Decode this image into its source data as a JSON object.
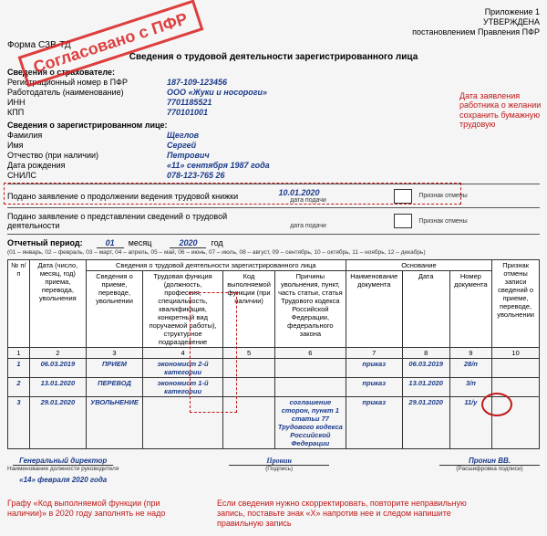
{
  "header": {
    "app_line1": "Приложение 1",
    "app_line2": "УТВЕРЖДЕНА",
    "app_line3": "постановлением Правления ПФР",
    "form_name": "Форма СЗВ-ТД",
    "title": "Сведения о трудовой деятельности зарегистрированного лица"
  },
  "insurer": {
    "head": "Сведения о страхователе:",
    "reg_label": "Регистрационный номер в ПФР",
    "reg_value": "187-109-123456",
    "emp_label": "Работодатель (наименование)",
    "emp_value": "ООО «Жуки и носороги»",
    "inn_label": "ИНН",
    "inn_value": "7701185521",
    "kpp_label": "КПП",
    "kpp_value": "770101001"
  },
  "person": {
    "head": "Сведения о зарегистрированном лице:",
    "fam_label": "Фамилия",
    "fam_value": "Щеглов",
    "name_label": "Имя",
    "name_value": "Сергей",
    "otch_label": "Отчество (при наличии)",
    "otch_value": "Петрович",
    "dob_label": "Дата рождения",
    "dob_value": "«11»  сентября 1987 года",
    "snils_label": "СНИЛС",
    "snils_value": "078-123-765 26"
  },
  "statements": {
    "s1_text": "Подано заявление о продолжении ведения трудовой книжки",
    "s1_date": "10.01.2020",
    "s2_text": "Подано заявление о представлении сведений о трудовой деятельности",
    "date_caption": "дата подачи",
    "cancel_caption": "Признак отмены"
  },
  "period": {
    "label": "Отчетный период:",
    "month": "01",
    "month_word": "месяц",
    "year": "2020",
    "year_word": "год",
    "note": "(01 – январь, 02 – февраль, 03 – март, 04 – апрель, 05 – май, 06 – июнь, 07 – июль, 08 – август, 09 – сентябрь, 10 – октябрь, 11 – ноябрь, 12 – декабрь)"
  },
  "table": {
    "h_np": "№ п/п",
    "h_date": "Дата (число, месяц, год) приема, перевода, увольнения",
    "h_svedeniya": "Сведения о трудовой деятельности зарегистрированного лица",
    "h_priema": "Сведения о приеме, переводе, увольнении",
    "h_func": "Трудовая функция (должность, профессия, специальность, квалификация, конкретный вид поручаемой работы), структурное подразделение",
    "h_code": "Код выполняемой функции (при наличии)",
    "h_reason": "Причины увольнения, пункт, часть статьи, статья Трудового кодекса Российской Федерации, федерального закона",
    "h_osn": "Основание",
    "h_doc_name": "Наименование документа",
    "h_doc_date": "Дата",
    "h_doc_num": "Номер документа",
    "h_cancel": "Признак отмены записи сведений о приеме, переводе, увольнении",
    "nums": {
      "c1": "1",
      "c2": "2",
      "c3": "3",
      "c4": "4",
      "c5": "5",
      "c6": "6",
      "c7": "7",
      "c8": "8",
      "c9": "9",
      "c10": "10"
    },
    "rows": [
      {
        "n": "1",
        "date": "06.03.2019",
        "event": "ПРИЕМ",
        "func": "экономист 2-й категории",
        "code": "",
        "reason": "",
        "doc": "приказ",
        "ddate": "06.03.2019",
        "dnum": "28/п",
        "cancel": ""
      },
      {
        "n": "2",
        "date": "13.01.2020",
        "event": "ПЕРЕВОД",
        "func": "экономист 1-й категории",
        "code": "",
        "reason": "",
        "doc": "приказ",
        "ddate": "13.01.2020",
        "dnum": "3/п",
        "cancel": ""
      },
      {
        "n": "3",
        "date": "29.01.2020",
        "event": "УВОЛЬНЕНИЕ",
        "func": "",
        "code": "",
        "reason": "соглашение сторон, пункт 1 статьи 77 Трудового кодекса Российской Федерации",
        "doc": "приказ",
        "ddate": "29.01.2020",
        "dnum": "11/у",
        "cancel": ""
      }
    ]
  },
  "sig": {
    "pos": "Генеральный директор",
    "pos_caption": "Наименование должности руководителя",
    "date": "«14» февраля 2020 года",
    "sign_caption": "(Подпись)",
    "sign_script": "Пронин",
    "name": "Пронин ВВ.",
    "name_caption": "(Расшифровка подписи)"
  },
  "callouts": {
    "stamp": "Согласовано с ПФР",
    "right1": "Дата заявления работника о желании сохранить бумажную трудовую",
    "bottom_left": "Графу «Код выполняемой функции (при наличии)» в 2020 году заполнять не надо",
    "bottom_right": "Если сведения нужно скорректировать, повторите неправильную запись, поставьте знак «Х» напротив нее и следом напишите правильную запись"
  },
  "colors": {
    "blue": "#1a3a8a",
    "red": "#c01818",
    "stamp_red": "#d92020"
  }
}
